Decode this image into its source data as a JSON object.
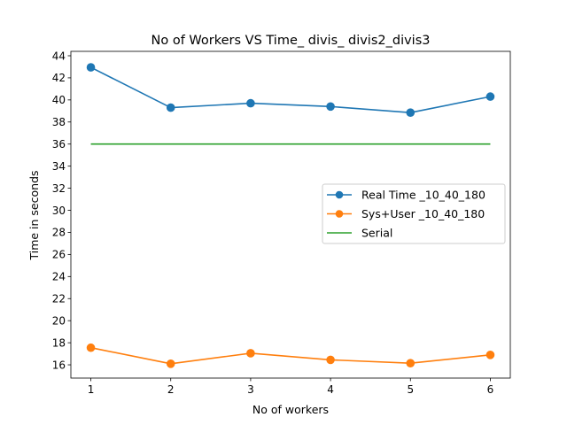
{
  "chart_data": {
    "type": "line",
    "title": "No of Workers VS Time_ divis_ divis2_divis3",
    "xlabel": "No of workers",
    "ylabel": "Time in seconds",
    "x": [
      1,
      2,
      3,
      4,
      5,
      6
    ],
    "xticks": [
      1,
      2,
      3,
      4,
      5,
      6
    ],
    "yticks": [
      16,
      18,
      20,
      22,
      24,
      26,
      28,
      30,
      32,
      34,
      36,
      38,
      40,
      42,
      44
    ],
    "xlim": [
      0.75,
      6.25
    ],
    "ylim": [
      14.8,
      44.4
    ],
    "grid": false,
    "legend_position": "center-right",
    "series": [
      {
        "name": "Real Time _10_40_180",
        "values": [
          42.95,
          39.3,
          39.7,
          39.4,
          38.85,
          40.3
        ],
        "color": "#1f77b4",
        "marker": true
      },
      {
        "name": "Sys+User _10_40_180",
        "values": [
          17.55,
          16.1,
          17.05,
          16.45,
          16.15,
          16.9
        ],
        "color": "#ff7f0e",
        "marker": true
      },
      {
        "name": "Serial",
        "values": [
          36.0,
          36.0,
          36.0,
          36.0,
          36.0,
          36.0
        ],
        "color": "#2ca02c",
        "marker": false
      }
    ]
  }
}
